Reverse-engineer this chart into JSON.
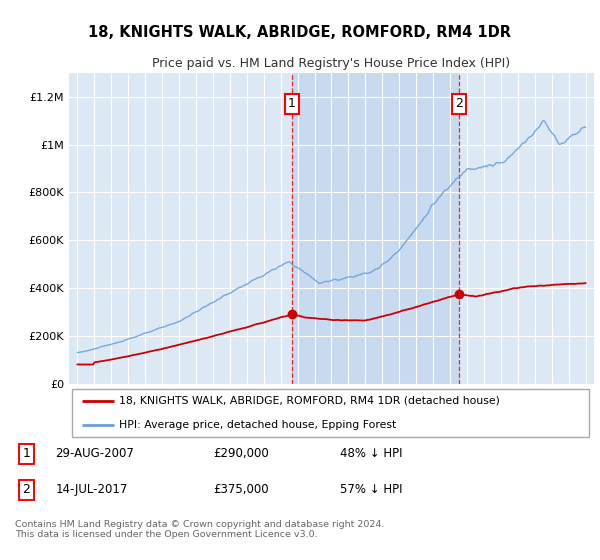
{
  "title": "18, KNIGHTS WALK, ABRIDGE, ROMFORD, RM4 1DR",
  "subtitle": "Price paid vs. HM Land Registry's House Price Index (HPI)",
  "footer": "Contains HM Land Registry data © Crown copyright and database right 2024.\nThis data is licensed under the Open Government Licence v3.0.",
  "legend_line1": "18, KNIGHTS WALK, ABRIDGE, ROMFORD, RM4 1DR (detached house)",
  "legend_line2": "HPI: Average price, detached house, Epping Forest",
  "sale1_date": "29-AUG-2007",
  "sale1_price": "£290,000",
  "sale1_hpi": "48% ↓ HPI",
  "sale2_date": "14-JUL-2017",
  "sale2_price": "£375,000",
  "sale2_hpi": "57% ↓ HPI",
  "hpi_color": "#6ca0dc",
  "price_color": "#cc0000",
  "sale_marker_color": "#cc0000",
  "bg_color": "#dce9f5",
  "bg_between_color": "#c8daf0",
  "grid_color": "#ffffff",
  "ylim": [
    0,
    1300000
  ],
  "yticks": [
    0,
    200000,
    400000,
    600000,
    800000,
    1000000,
    1200000
  ],
  "ytick_labels": [
    "£0",
    "£200K",
    "£400K",
    "£600K",
    "£800K",
    "£1M",
    "£1.2M"
  ],
  "sale1_x": 2007.66,
  "sale1_y": 290000,
  "sale2_x": 2017.54,
  "sale2_y": 375000,
  "xmin": 1995,
  "xmax": 2025
}
